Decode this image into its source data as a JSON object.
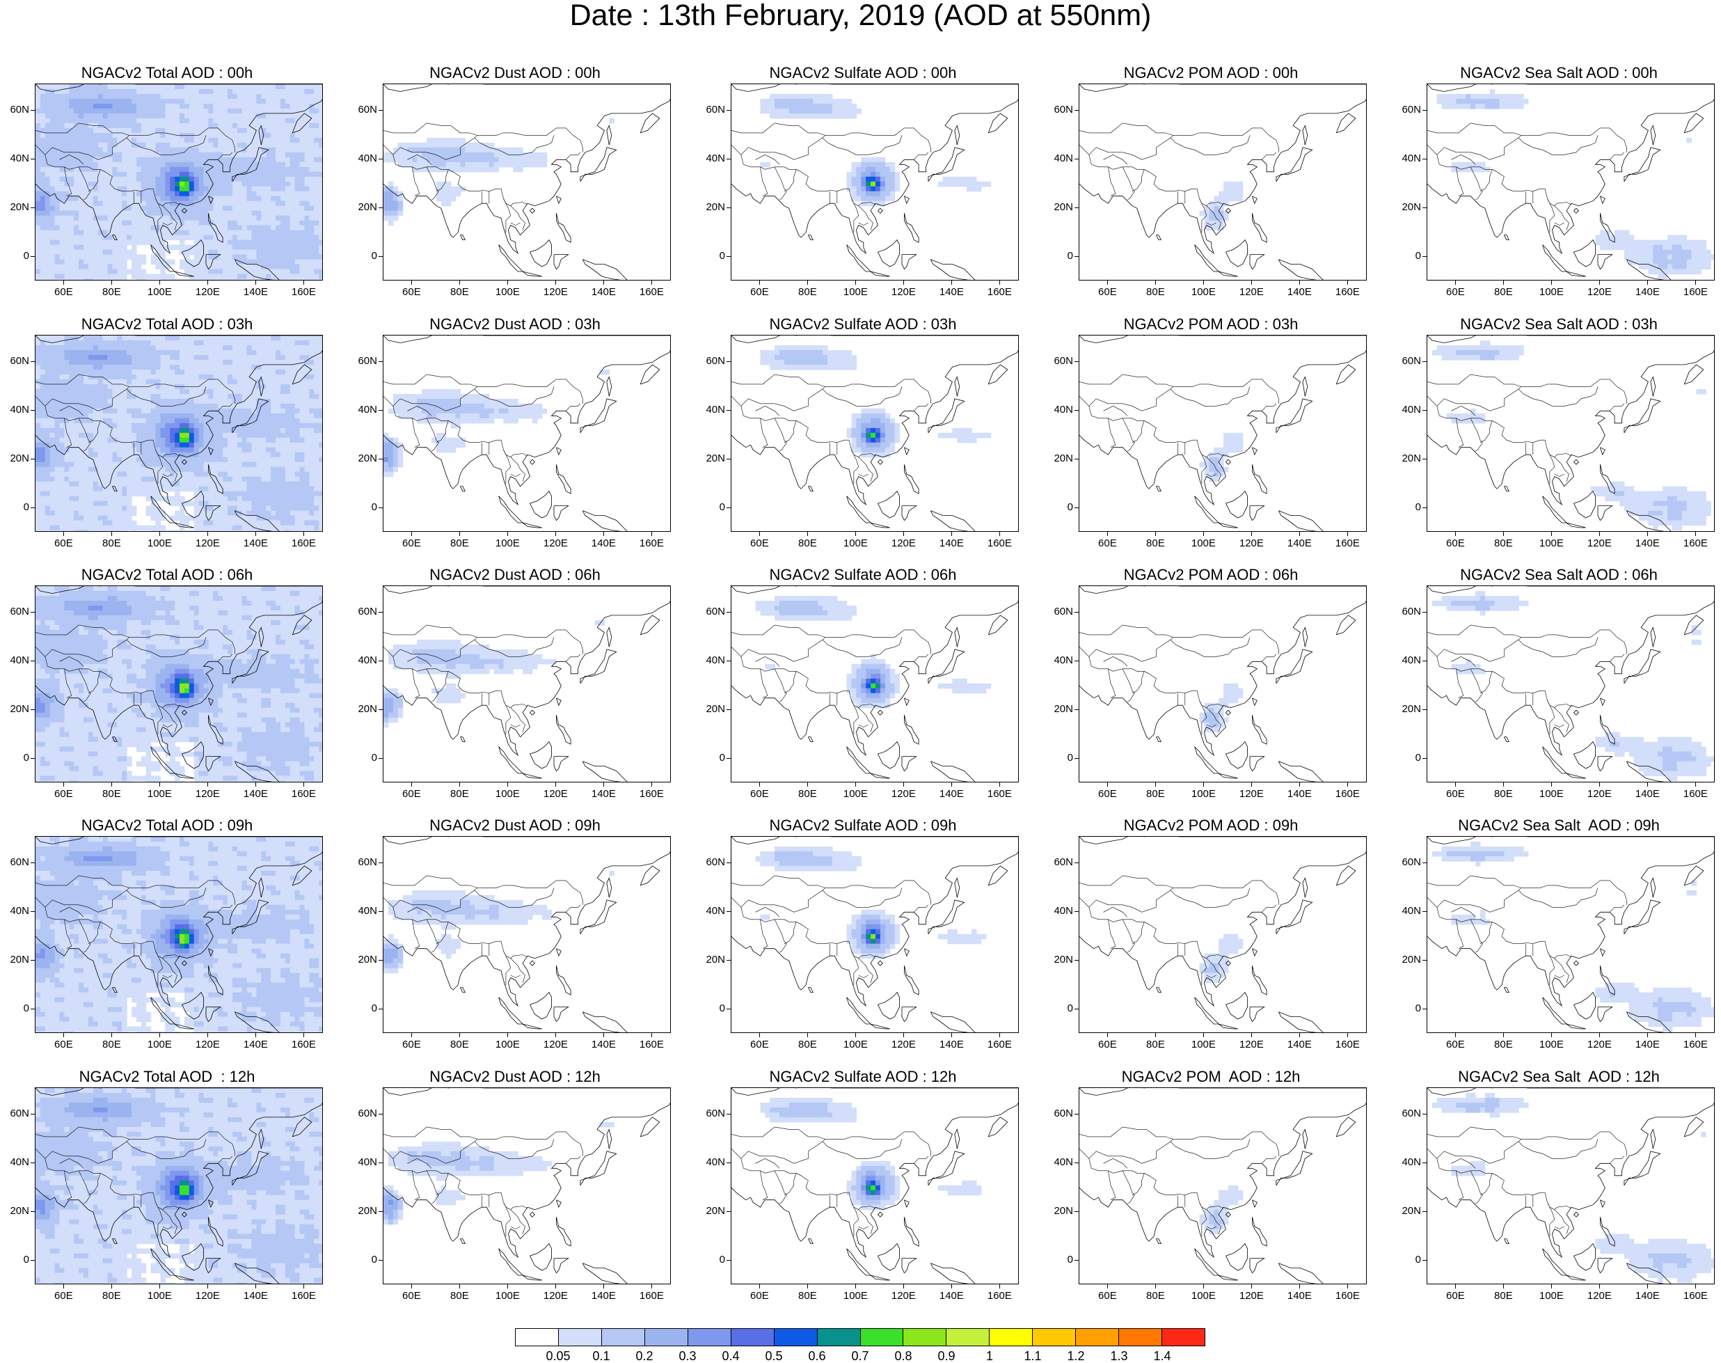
{
  "title": "Date : 13th February, 2019 (AOD at 550nm)",
  "panels": [
    [
      "NGACv2 Total AOD : 00h",
      "NGACv2 Dust AOD : 00h",
      "NGACv2 Sulfate AOD : 00h",
      "NGACv2 POM AOD : 00h",
      "NGACv2 Sea Salt AOD : 00h"
    ],
    [
      "NGACv2 Total AOD : 03h",
      "NGACv2 Dust AOD : 03h",
      "NGACv2 Sulfate AOD : 03h",
      "NGACv2 POM AOD : 03h",
      "NGACv2 Sea Salt AOD : 03h"
    ],
    [
      "NGACv2 Total AOD : 06h",
      "NGACv2 Dust AOD : 06h",
      "NGACv2 Sulfate AOD : 06h",
      "NGACv2 POM AOD : 06h",
      "NGACv2 Sea Salt AOD : 06h"
    ],
    [
      "NGACv2 Total AOD : 09h",
      "NGACv2 Dust AOD : 09h",
      "NGACv2 Sulfate AOD : 09h",
      "NGACv2 POM AOD : 09h",
      "NGACv2 Sea Salt  AOD : 09h"
    ],
    [
      "NGACv2 Total AOD  : 12h",
      "NGACv2 Dust AOD : 12h",
      "NGACv2 Sulfate AOD : 12h",
      "NGACv2 POM  AOD : 12h",
      "NGACv2 Sea Salt  AOD : 12h"
    ]
  ],
  "lat_labels": [
    "60N",
    "40N",
    "20N",
    "0"
  ],
  "lon_labels": [
    "60E",
    "80E",
    "100E",
    "120E",
    "140E",
    "160E"
  ],
  "colorbar": {
    "levels": [
      "0.05",
      "0.1",
      "0.2",
      "0.3",
      "0.4",
      "0.5",
      "0.6",
      "0.7",
      "0.8",
      "0.9",
      "1",
      "1.1",
      "1.2",
      "1.3",
      "1.4"
    ],
    "colors": [
      "#ffffff",
      "#d2defa",
      "#b4c7f5",
      "#9bb4f0",
      "#7f98ee",
      "#5a6ee6",
      "#0d5ae6",
      "#07928c",
      "#3ae02a",
      "#8ce61e",
      "#c3f03c",
      "#ffff00",
      "#ffc800",
      "#ffa000",
      "#ff7800",
      "#ff2814"
    ]
  }
}
